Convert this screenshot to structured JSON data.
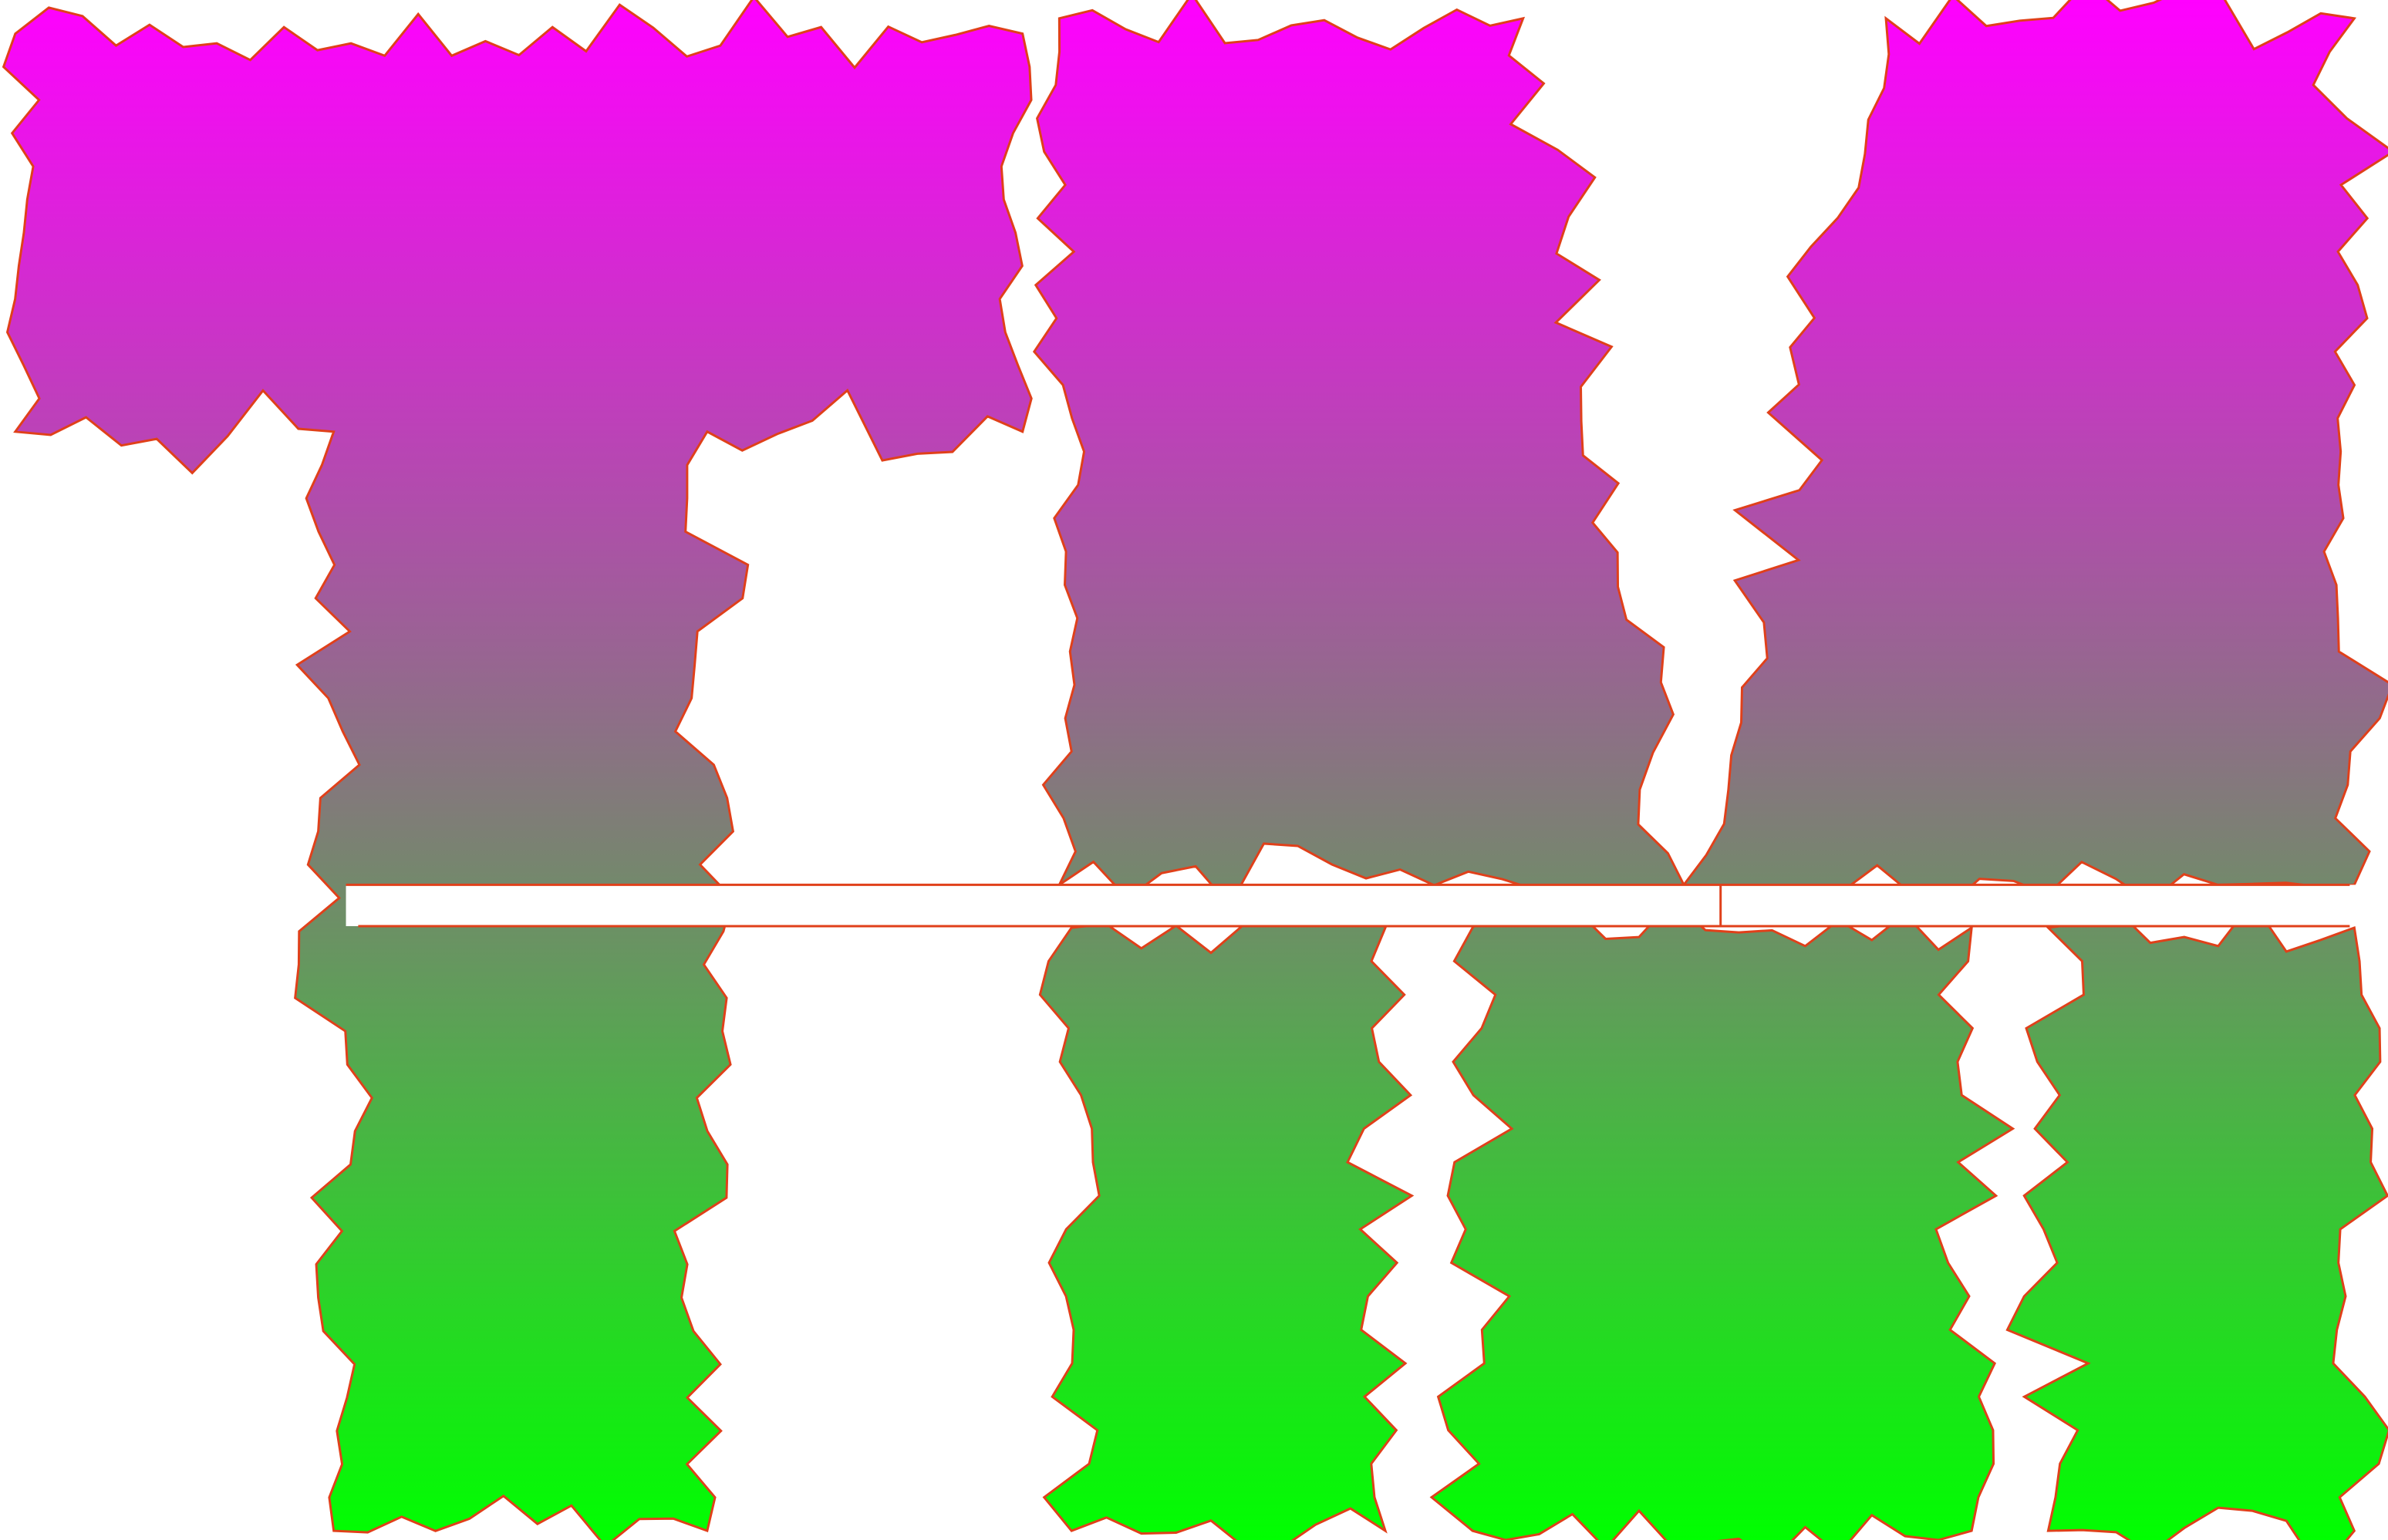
{
  "logo": {
    "text": "TM",
    "letters": [
      "T",
      "M"
    ]
  },
  "colors": {
    "gradient_top": "#ff00ff",
    "gradient_middle": "#7a8272",
    "gradient_bottom": "#00ff00",
    "outline": "#e0401a",
    "band": "#ffffff"
  }
}
